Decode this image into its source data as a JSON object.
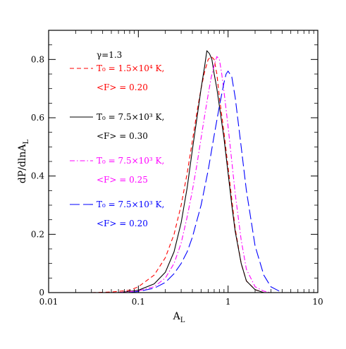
{
  "chart_data": {
    "type": "line",
    "xlabel": "A",
    "xlabel_sub": "L",
    "ylabel": "dP/dlnA",
    "ylabel_sub": "L",
    "x_scale": "log",
    "xlim": [
      0.01,
      10
    ],
    "ylim": [
      0,
      0.9
    ],
    "x_ticks": [
      {
        "value": 0.01,
        "label": "0.01"
      },
      {
        "value": 0.1,
        "label": "0.1"
      },
      {
        "value": 1,
        "label": "1"
      },
      {
        "value": 10,
        "label": "10"
      }
    ],
    "y_ticks": [
      {
        "value": 0,
        "label": "0"
      },
      {
        "value": 0.2,
        "label": "0.2"
      },
      {
        "value": 0.4,
        "label": "0.4"
      },
      {
        "value": 0.6,
        "label": "0.6"
      },
      {
        "value": 0.8,
        "label": "0.8"
      }
    ],
    "legend_title": "γ=1.3",
    "legend_placement": "upper-left",
    "series": [
      {
        "name_line1": "T₀ = 1.5×10⁴ K,",
        "name_line2": "<F> = 0.20",
        "color": "#ff0000",
        "dash": "6,4",
        "x": [
          0.03,
          0.05,
          0.08,
          0.1,
          0.15,
          0.2,
          0.25,
          0.3,
          0.35,
          0.4,
          0.45,
          0.5,
          0.55,
          0.6,
          0.65,
          0.7,
          0.75,
          0.8,
          0.9,
          1.0,
          1.1,
          1.2,
          1.4,
          1.6,
          2.0,
          2.5
        ],
        "y": [
          0.0,
          0.002,
          0.008,
          0.02,
          0.06,
          0.12,
          0.2,
          0.3,
          0.41,
          0.52,
          0.62,
          0.7,
          0.76,
          0.8,
          0.81,
          0.8,
          0.75,
          0.67,
          0.55,
          0.43,
          0.32,
          0.22,
          0.1,
          0.04,
          0.01,
          0.0
        ]
      },
      {
        "name_line1": "T₀ = 7.5×10³ K,",
        "name_line2": "<F> = 0.30",
        "color": "#000000",
        "dash": "",
        "x": [
          0.06,
          0.1,
          0.15,
          0.2,
          0.25,
          0.3,
          0.35,
          0.4,
          0.45,
          0.5,
          0.55,
          0.58,
          0.62,
          0.66,
          0.7,
          0.75,
          0.8,
          0.9,
          1.0,
          1.1,
          1.2,
          1.4,
          1.6,
          2.0,
          2.5
        ],
        "y": [
          0.0,
          0.008,
          0.03,
          0.07,
          0.14,
          0.24,
          0.36,
          0.49,
          0.6,
          0.7,
          0.78,
          0.83,
          0.82,
          0.8,
          0.75,
          0.7,
          0.64,
          0.53,
          0.41,
          0.3,
          0.21,
          0.1,
          0.04,
          0.01,
          0.0
        ]
      },
      {
        "name_line1": "T₀ = 7.5×10³ K,",
        "name_line2": "<F> = 0.25",
        "color": "#ff00ff",
        "dash": "7,3,1.5,3",
        "x": [
          0.06,
          0.1,
          0.15,
          0.2,
          0.25,
          0.3,
          0.35,
          0.4,
          0.45,
          0.5,
          0.55,
          0.6,
          0.65,
          0.7,
          0.75,
          0.8,
          0.85,
          0.9,
          1.0,
          1.1,
          1.2,
          1.4,
          1.6,
          2.0,
          2.5,
          3.0
        ],
        "y": [
          0.0,
          0.006,
          0.02,
          0.05,
          0.1,
          0.17,
          0.26,
          0.35,
          0.44,
          0.53,
          0.61,
          0.68,
          0.74,
          0.78,
          0.81,
          0.8,
          0.75,
          0.69,
          0.57,
          0.45,
          0.34,
          0.18,
          0.08,
          0.02,
          0.005,
          0.0
        ]
      },
      {
        "name_line1": "T₀ = 7.5×10³ K,",
        "name_line2": "<F> = 0.20",
        "color": "#0000ff",
        "dash": "14,5",
        "x": [
          0.08,
          0.1,
          0.15,
          0.2,
          0.25,
          0.3,
          0.35,
          0.4,
          0.5,
          0.6,
          0.7,
          0.8,
          0.9,
          0.95,
          1.0,
          1.05,
          1.1,
          1.2,
          1.4,
          1.6,
          2.0,
          2.5,
          3.0,
          4.0
        ],
        "y": [
          0.0,
          0.004,
          0.015,
          0.035,
          0.065,
          0.1,
          0.14,
          0.19,
          0.3,
          0.42,
          0.54,
          0.64,
          0.72,
          0.75,
          0.76,
          0.75,
          0.74,
          0.67,
          0.5,
          0.35,
          0.16,
          0.06,
          0.02,
          0.0
        ]
      }
    ]
  }
}
